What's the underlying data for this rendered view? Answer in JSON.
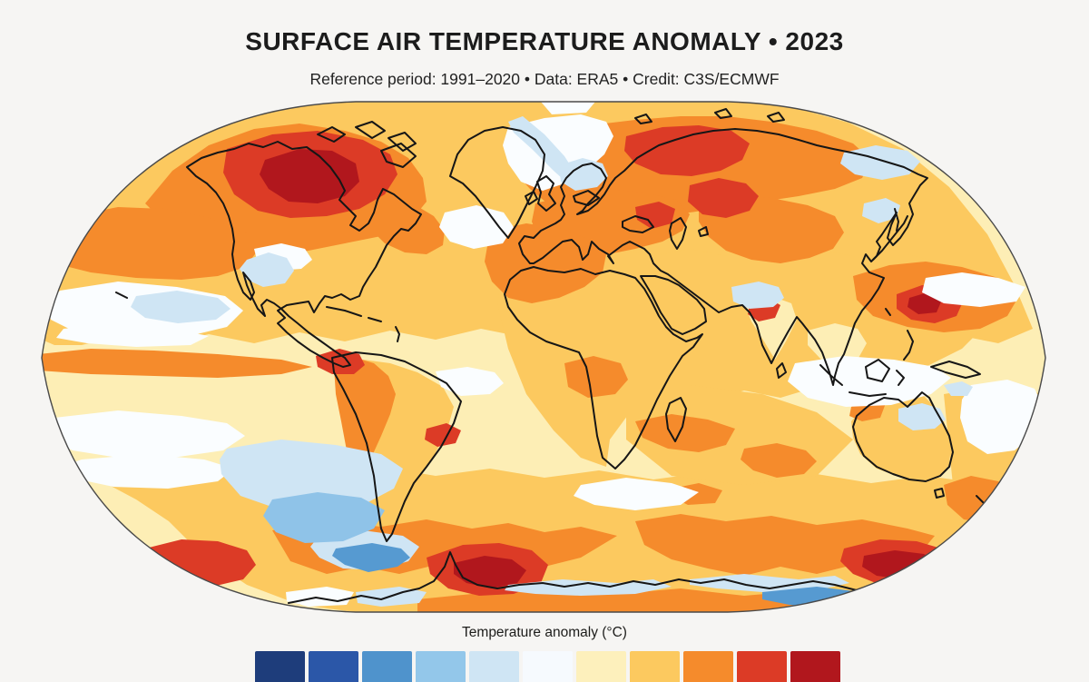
{
  "header": {
    "title": "SURFACE AIR TEMPERATURE ANOMALY • 2023",
    "subtitle": "Reference period: 1991–2020 • Data: ERA5 • Credit: C3S/ECMWF"
  },
  "legend": {
    "label": "Temperature anomaly (°C)",
    "colors": [
      "#1e3d7b",
      "#2b57a8",
      "#4f93cc",
      "#93c7ea",
      "#cfe5f4",
      "#f6fafe",
      "#fdf0bc",
      "#fcc95f",
      "#f58b2c",
      "#dc3b26",
      "#b1171d"
    ]
  },
  "map": {
    "projection": "Robinson",
    "description": "World map of 2023 surface air temperature anomaly vs 1991–2020; warm anomalies (yellow-orange-red) dominate globally, with limited cool (blue) regions.",
    "features": [
      {
        "region": "Northern Canada / Hudson Bay area",
        "anomaly": "strongest warm (dark red)"
      },
      {
        "region": "Western Russia and Kazakhstan",
        "anomaly": "strong warm (red patches)"
      },
      {
        "region": "Europe and Mediterranean",
        "anomaly": "warm (orange)"
      },
      {
        "region": "North Pacific east of Japan",
        "anomaly": "strong warm (red core in orange band)"
      },
      {
        "region": "North Atlantic off US east coast",
        "anomaly": "warm (orange)"
      },
      {
        "region": "Equatorial eastern Pacific (El Niño tongue)",
        "anomaly": "warm (orange wedge)"
      },
      {
        "region": "Amazon / northern Andes",
        "anomaly": "strong warm (orange-red)"
      },
      {
        "region": "Antarctic Peninsula / Weddell Sea",
        "anomaly": "strong warm (dark red)"
      },
      {
        "region": "Southern Ocean south of Australia",
        "anomaly": "strong warm (dark red)"
      },
      {
        "region": "Western United States",
        "anomaly": "cool (light blue)"
      },
      {
        "region": "East Greenland coast",
        "anomaly": "cool (light blue streak)"
      },
      {
        "region": "Scandinavia",
        "anomaly": "slightly cool (pale blue)"
      },
      {
        "region": "Himalaya / Tibetan Plateau",
        "anomaly": "slightly cool (pale blue)"
      },
      {
        "region": "Northeast Siberia / Sea of Okhotsk",
        "anomaly": "slightly cool (pale blue)"
      },
      {
        "region": "Southeast Pacific and Drake Passage",
        "anomaly": "cool (blue)"
      },
      {
        "region": "Antarctic coastal Southern Ocean",
        "anomaly": "cool (blue streaks)"
      },
      {
        "region": "Central Australia",
        "anomaly": "slightly cool (pale blue)"
      },
      {
        "region": "Tropical oceans generally",
        "anomaly": "mild warm (pale yellow)"
      }
    ]
  },
  "palette": {
    "background": "#f6f5f3",
    "base_mild_warm": "#fdeeb5",
    "warm": "#fcc95f",
    "warmer": "#f58b2c",
    "hot": "#dc3b26",
    "hottest": "#b1171d",
    "neutral_white": "#fafdff",
    "cool": "#cfe5f4",
    "cooler": "#8fc3e8",
    "coldest_shown": "#569ad1",
    "coastline": "#161616",
    "antarctic_edge_line": "#bd8e3f"
  }
}
